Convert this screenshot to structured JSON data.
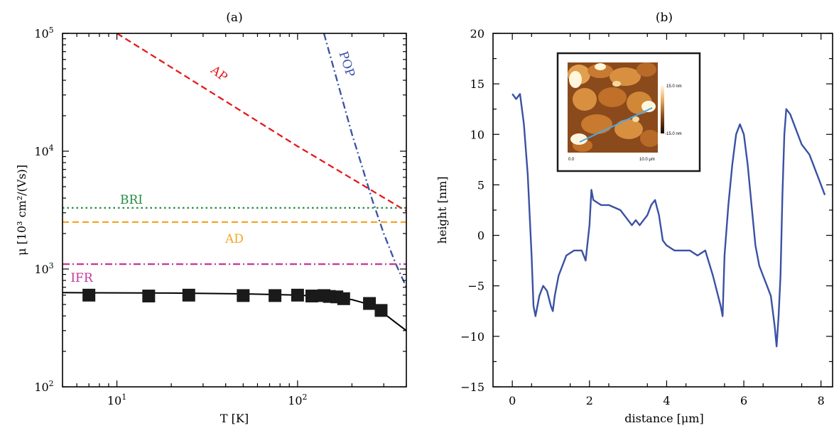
{
  "chart_data": [
    {
      "type": "line",
      "title": "(a)",
      "xlabel": "T [K]",
      "ylabel": "μ [10³ cm²/(Vs)]",
      "xscale": "log",
      "yscale": "log",
      "xlim": [
        5,
        400
      ],
      "ylim": [
        100,
        100000
      ],
      "x_ticks": [
        {
          "value": 10,
          "base": "10",
          "exp": "1"
        },
        {
          "value": 100,
          "base": "10",
          "exp": "2"
        }
      ],
      "y_ticks": [
        {
          "value": 100,
          "base": "10",
          "exp": "2"
        },
        {
          "value": 1000,
          "base": "10",
          "exp": "3"
        },
        {
          "value": 10000,
          "base": "10",
          "exp": "4"
        },
        {
          "value": 100000,
          "base": "10",
          "exp": "5"
        }
      ],
      "grid": false,
      "series": [
        {
          "name": "AP",
          "color": "#e41a1c",
          "style": "dashed",
          "x": [
            10,
            100,
            400
          ],
          "y": [
            100000,
            11000,
            3100
          ]
        },
        {
          "name": "POP",
          "color": "#3a51a3",
          "style": "dashdot",
          "x": [
            140,
            160,
            180,
            200,
            230,
            260,
            300,
            350,
            400
          ],
          "y": [
            100000,
            48000,
            25000,
            14000,
            7000,
            3800,
            2000,
            1100,
            700
          ]
        },
        {
          "name": "BRI",
          "color": "#238b45",
          "style": "dotted",
          "x": [
            5,
            400
          ],
          "y": [
            3300,
            3300
          ]
        },
        {
          "name": "AD",
          "color": "#f5a623",
          "style": "dashed",
          "x": [
            5,
            400
          ],
          "y": [
            2500,
            2500
          ]
        },
        {
          "name": "IFR",
          "color": "#c2379a",
          "style": "dashdot",
          "x": [
            5,
            400
          ],
          "y": [
            1100,
            1100
          ]
        },
        {
          "name": "",
          "color": "#000000",
          "style": "solid",
          "x": [
            5,
            20,
            50,
            100,
            150,
            200,
            250,
            300,
            350,
            400
          ],
          "y": [
            630,
            625,
            615,
            600,
            580,
            550,
            500,
            420,
            350,
            300
          ]
        },
        {
          "name": "",
          "color": "#1a1a1a",
          "style": "markers",
          "x": [
            7,
            15,
            25,
            50,
            75,
            100,
            120,
            140,
            150,
            165,
            180,
            250,
            290
          ],
          "y": [
            600,
            590,
            600,
            595,
            595,
            600,
            590,
            595,
            585,
            580,
            560,
            510,
            445
          ]
        }
      ],
      "annotations": [
        {
          "text": "AP",
          "color": "#e41a1c"
        },
        {
          "text": "POP",
          "color": "#3a51a3"
        },
        {
          "text": "BRI",
          "color": "#238b45"
        },
        {
          "text": "AD",
          "color": "#f5a623"
        },
        {
          "text": "IFR",
          "color": "#c2379a"
        }
      ]
    },
    {
      "type": "line",
      "title": "(b)",
      "xlabel": "distance [μm]",
      "ylabel": "height [nm]",
      "xlim": [
        -0.5,
        8.3
      ],
      "ylim": [
        -15,
        20
      ],
      "x_ticks": [
        0,
        2,
        4,
        6,
        8
      ],
      "y_ticks": [
        -15,
        -10,
        -5,
        0,
        5,
        10,
        15,
        20
      ],
      "grid": false,
      "series": [
        {
          "name": "",
          "color": "#3a51a3",
          "style": "solid",
          "x": [
            0,
            0.1,
            0.2,
            0.3,
            0.4,
            0.5,
            0.55,
            0.6,
            0.7,
            0.8,
            0.9,
            1.0,
            1.05,
            1.1,
            1.2,
            1.4,
            1.6,
            1.8,
            1.9,
            2.0,
            2.05,
            2.1,
            2.3,
            2.5,
            2.8,
            3.0,
            3.1,
            3.2,
            3.3,
            3.5,
            3.6,
            3.7,
            3.8,
            3.9,
            4.0,
            4.2,
            4.4,
            4.6,
            4.8,
            5.0,
            5.2,
            5.4,
            5.45,
            5.5,
            5.6,
            5.7,
            5.8,
            5.9,
            6.0,
            6.1,
            6.2,
            6.3,
            6.4,
            6.5,
            6.6,
            6.7,
            6.8,
            6.85,
            6.9,
            6.95,
            7.0,
            7.05,
            7.1,
            7.2,
            7.3,
            7.5,
            7.7,
            7.9,
            8.0,
            8.1
          ],
          "y": [
            14,
            13.5,
            14,
            11,
            6,
            -2,
            -7,
            -8,
            -6,
            -5,
            -5.5,
            -7,
            -7.5,
            -6,
            -4,
            -2,
            -1.5,
            -1.5,
            -2.5,
            1,
            4.5,
            3.5,
            3,
            3,
            2.5,
            1.5,
            1,
            1.5,
            1,
            2,
            3,
            3.5,
            2,
            -0.5,
            -1,
            -1.5,
            -1.5,
            -1.5,
            -2,
            -1.5,
            -4,
            -7,
            -8,
            -2,
            3,
            7,
            10,
            11,
            10,
            7,
            3,
            -1,
            -3,
            -4,
            -5,
            -6,
            -9,
            -11,
            -8,
            -4,
            4,
            10,
            12.5,
            12,
            11,
            9,
            8,
            6,
            5,
            4
          ]
        }
      ],
      "inset": {
        "colorbar_labels": [
          "15.0 nm",
          "-15.0 nm"
        ],
        "x_labels": [
          "0.0",
          "10.0 μm"
        ]
      }
    }
  ]
}
